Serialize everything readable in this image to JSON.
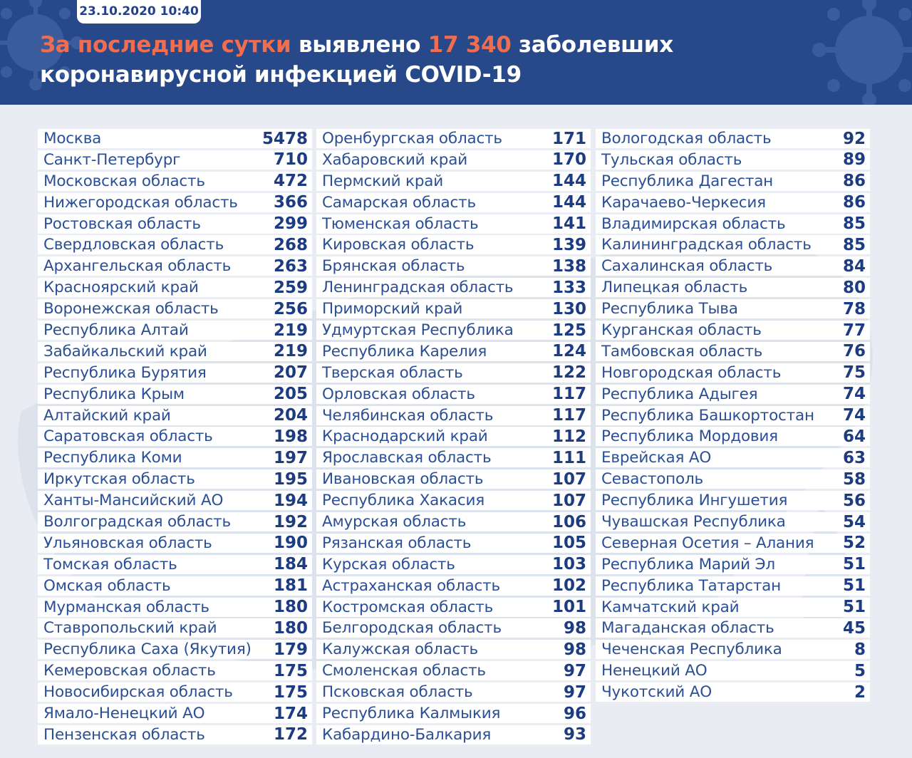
{
  "date": "23.10.2020 10:40",
  "headline": {
    "part1": "За последние сутки",
    "part2": " выявлено ",
    "count": "17 340",
    "part3": " заболевших",
    "line2": "коронавирусной инфекцией COVID-19"
  },
  "colors": {
    "header_bg": "#274989",
    "accent": "#f06d4f",
    "text": "#2b4f95",
    "value": "#1c3b80"
  },
  "regions": {
    "col1": [
      {
        "name": "Москва",
        "value": "5478"
      },
      {
        "name": "Санкт-Петербург",
        "value": "710"
      },
      {
        "name": "Московская область",
        "value": "472"
      },
      {
        "name": "Нижегородская область",
        "value": "366"
      },
      {
        "name": "Ростовская область",
        "value": "299"
      },
      {
        "name": "Свердловская область",
        "value": "268"
      },
      {
        "name": "Архангельская область",
        "value": "263"
      },
      {
        "name": "Красноярский край",
        "value": "259"
      },
      {
        "name": "Воронежская область",
        "value": "256"
      },
      {
        "name": "Республика Алтай",
        "value": "219"
      },
      {
        "name": "Забайкальский край",
        "value": "219"
      },
      {
        "name": "Республика Бурятия",
        "value": "207"
      },
      {
        "name": "Республика Крым",
        "value": "205"
      },
      {
        "name": "Алтайский край",
        "value": "204"
      },
      {
        "name": "Саратовская область",
        "value": "198"
      },
      {
        "name": "Республика Коми",
        "value": "197"
      },
      {
        "name": "Иркутская область",
        "value": "195"
      },
      {
        "name": "Ханты-Мансийский АО",
        "value": "194"
      },
      {
        "name": "Волгоградская область",
        "value": "192"
      },
      {
        "name": "Ульяновская область",
        "value": "190"
      },
      {
        "name": "Томская область",
        "value": "184"
      },
      {
        "name": "Омская область",
        "value": "181"
      },
      {
        "name": "Мурманская область",
        "value": "180"
      },
      {
        "name": "Ставропольский край",
        "value": "180"
      },
      {
        "name": "Республика Саха (Якутия)",
        "value": "179"
      },
      {
        "name": "Кемеровская область",
        "value": "175"
      },
      {
        "name": "Новосибирская область",
        "value": "175"
      },
      {
        "name": "Ямало-Ненецкий АО",
        "value": "174"
      },
      {
        "name": "Пензенская область",
        "value": "172"
      }
    ],
    "col2": [
      {
        "name": "Оренбургская область",
        "value": "171"
      },
      {
        "name": "Хабаровский край",
        "value": "170"
      },
      {
        "name": "Пермский край",
        "value": "144"
      },
      {
        "name": "Самарская область",
        "value": "144"
      },
      {
        "name": "Тюменская область",
        "value": "141"
      },
      {
        "name": "Кировская область",
        "value": "139"
      },
      {
        "name": "Брянская область",
        "value": "138"
      },
      {
        "name": "Ленинградская область",
        "value": "133"
      },
      {
        "name": "Приморский край",
        "value": "130"
      },
      {
        "name": "Удмуртская Республика",
        "value": "125"
      },
      {
        "name": "Республика Карелия",
        "value": "124"
      },
      {
        "name": "Тверская область",
        "value": "122"
      },
      {
        "name": "Орловская область",
        "value": "117"
      },
      {
        "name": "Челябинская область",
        "value": "117"
      },
      {
        "name": "Краснодарский край",
        "value": "112"
      },
      {
        "name": "Ярославская область",
        "value": "111"
      },
      {
        "name": "Ивановская область",
        "value": "107"
      },
      {
        "name": "Республика Хакасия",
        "value": "107"
      },
      {
        "name": "Амурская область",
        "value": "106"
      },
      {
        "name": "Рязанская область",
        "value": "105"
      },
      {
        "name": "Курская область",
        "value": "103"
      },
      {
        "name": "Астраханская область",
        "value": "102"
      },
      {
        "name": "Костромская область",
        "value": "101"
      },
      {
        "name": "Белгородская область",
        "value": "98"
      },
      {
        "name": "Калужская область",
        "value": "98"
      },
      {
        "name": "Смоленская область",
        "value": "97"
      },
      {
        "name": "Псковская область",
        "value": "97"
      },
      {
        "name": "Республика Калмыкия",
        "value": "96"
      },
      {
        "name": "Кабардино-Балкария",
        "value": "93"
      }
    ],
    "col3": [
      {
        "name": "Вологодская область",
        "value": "92"
      },
      {
        "name": "Тульская область",
        "value": "89"
      },
      {
        "name": "Республика Дагестан",
        "value": "86"
      },
      {
        "name": "Карачаево-Черкесия",
        "value": "86"
      },
      {
        "name": "Владимирская область",
        "value": "85"
      },
      {
        "name": "Калининградская область",
        "value": "85"
      },
      {
        "name": "Сахалинская область",
        "value": "84"
      },
      {
        "name": "Липецкая область",
        "value": "80"
      },
      {
        "name": "Республика Тыва",
        "value": "78"
      },
      {
        "name": "Курганская область",
        "value": "77"
      },
      {
        "name": "Тамбовская область",
        "value": "76"
      },
      {
        "name": "Новгородская область",
        "value": "75"
      },
      {
        "name": "Республика Адыгея",
        "value": "74"
      },
      {
        "name": "Республика Башкортостан",
        "value": "74"
      },
      {
        "name": "Республика Мордовия",
        "value": "64"
      },
      {
        "name": "Еврейская АО",
        "value": "63"
      },
      {
        "name": "Севастополь",
        "value": "58"
      },
      {
        "name": "Республика Ингушетия",
        "value": "56"
      },
      {
        "name": "Чувашская Республика",
        "value": "54"
      },
      {
        "name": "Северная Осетия – Алания",
        "value": "52"
      },
      {
        "name": "Республика Марий Эл",
        "value": "51"
      },
      {
        "name": "Республика Татарстан",
        "value": "51"
      },
      {
        "name": "Камчатский край",
        "value": "51"
      },
      {
        "name": "Магаданская область",
        "value": "45"
      },
      {
        "name": "Чеченская Республика",
        "value": "8"
      },
      {
        "name": "Ненецкий АО",
        "value": "5"
      },
      {
        "name": "Чукотский АО",
        "value": "2"
      }
    ]
  }
}
